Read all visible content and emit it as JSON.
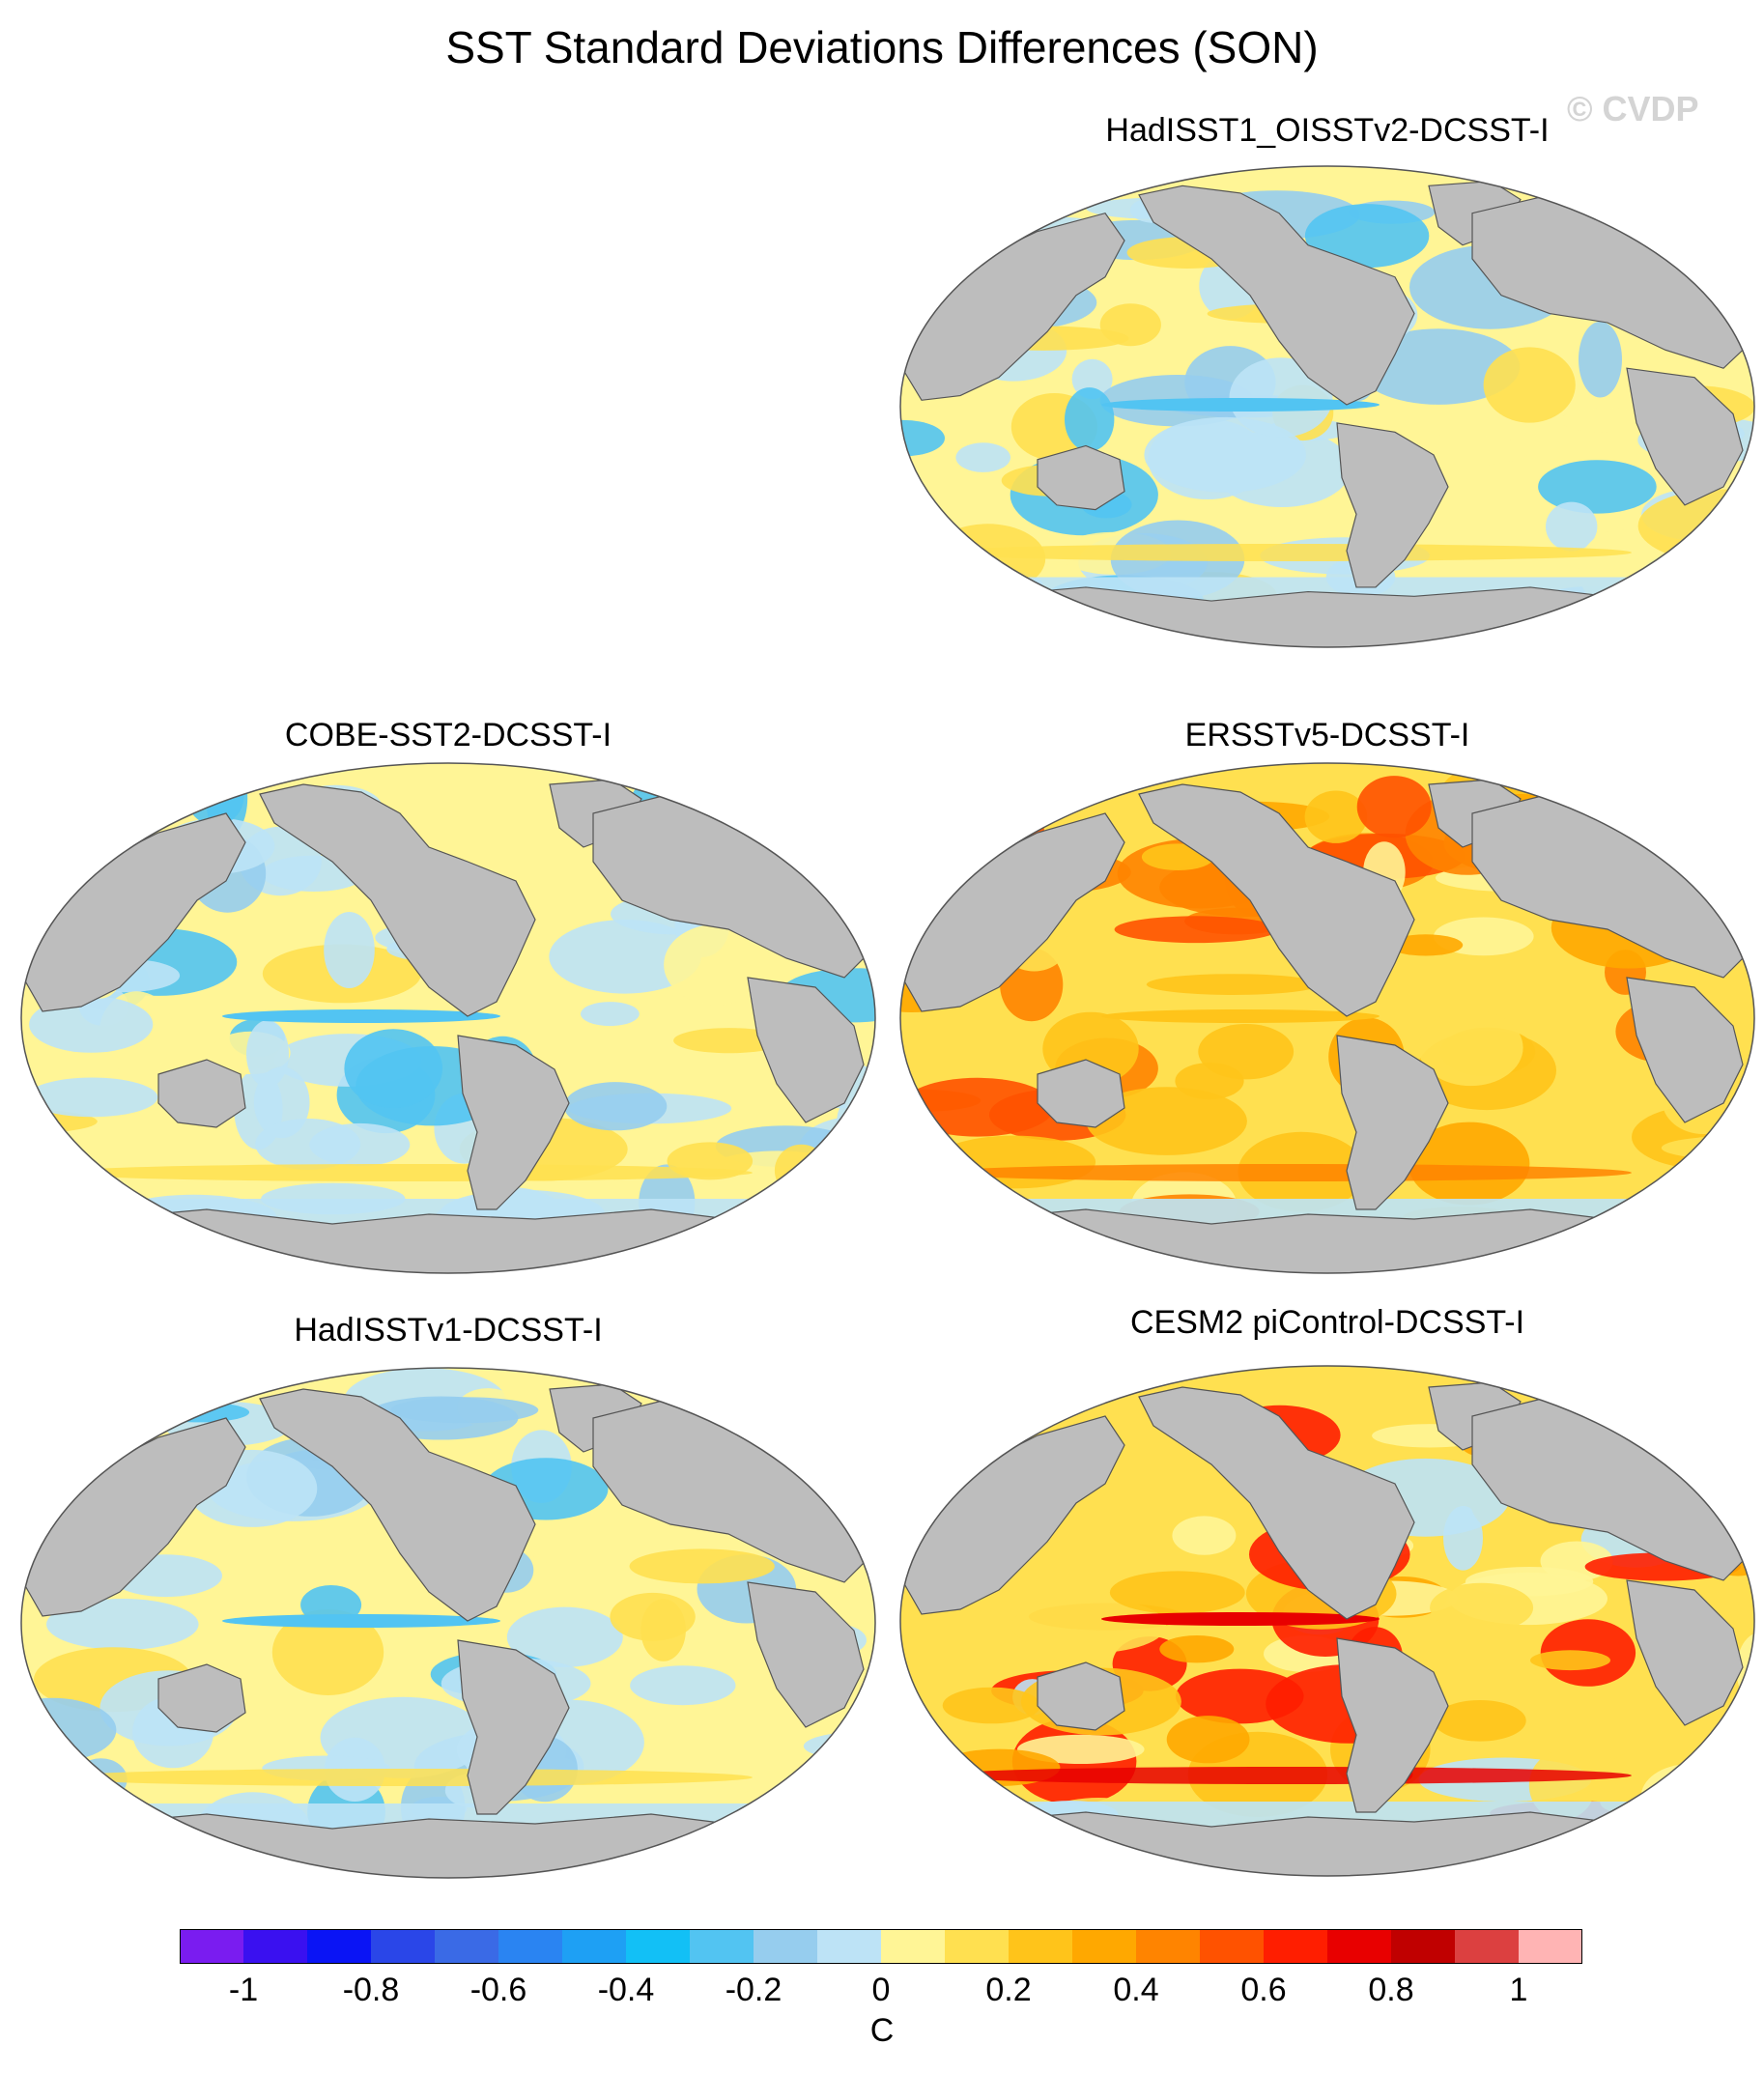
{
  "title": "SST Standard Deviations Differences (SON)",
  "watermark": "© CVDP",
  "colors": {
    "land": "#bdbdbd",
    "ocean_base": "#ffef96",
    "outline": "#555555"
  },
  "panels": [
    {
      "id": "p1",
      "title": "HadISST1_OISSTv2-DCSST-I",
      "style": "mixed"
    },
    {
      "id": "p2",
      "title": "COBE-SST2-DCSST-I",
      "style": "mixed"
    },
    {
      "id": "p3",
      "title": "ERSSTv5-DCSST-I",
      "style": "warm"
    },
    {
      "id": "p4",
      "title": "HadISSTv1-DCSST-I",
      "style": "mixed"
    },
    {
      "id": "p5",
      "title": "CESM2 piControl-DCSST-I",
      "style": "warm-strong"
    }
  ],
  "colorbar": {
    "unit": "C",
    "tick_labels": [
      "-1",
      "-0.8",
      "-0.6",
      "-0.4",
      "-0.2",
      "0",
      "0.2",
      "0.4",
      "0.6",
      "0.8",
      "1"
    ],
    "colors": [
      "#7a1cf0",
      "#3a10f0",
      "#0a14f5",
      "#2a46e8",
      "#3a6ae6",
      "#2a84f2",
      "#1ea0f4",
      "#12c0f6",
      "#52c4f2",
      "#96cdee",
      "#bde3f6",
      "#fff596",
      "#ffe050",
      "#ffc41a",
      "#ffa800",
      "#ff8400",
      "#ff5200",
      "#ff1e00",
      "#e80000",
      "#c00000",
      "#dc4040",
      "#ffb4b4"
    ]
  }
}
